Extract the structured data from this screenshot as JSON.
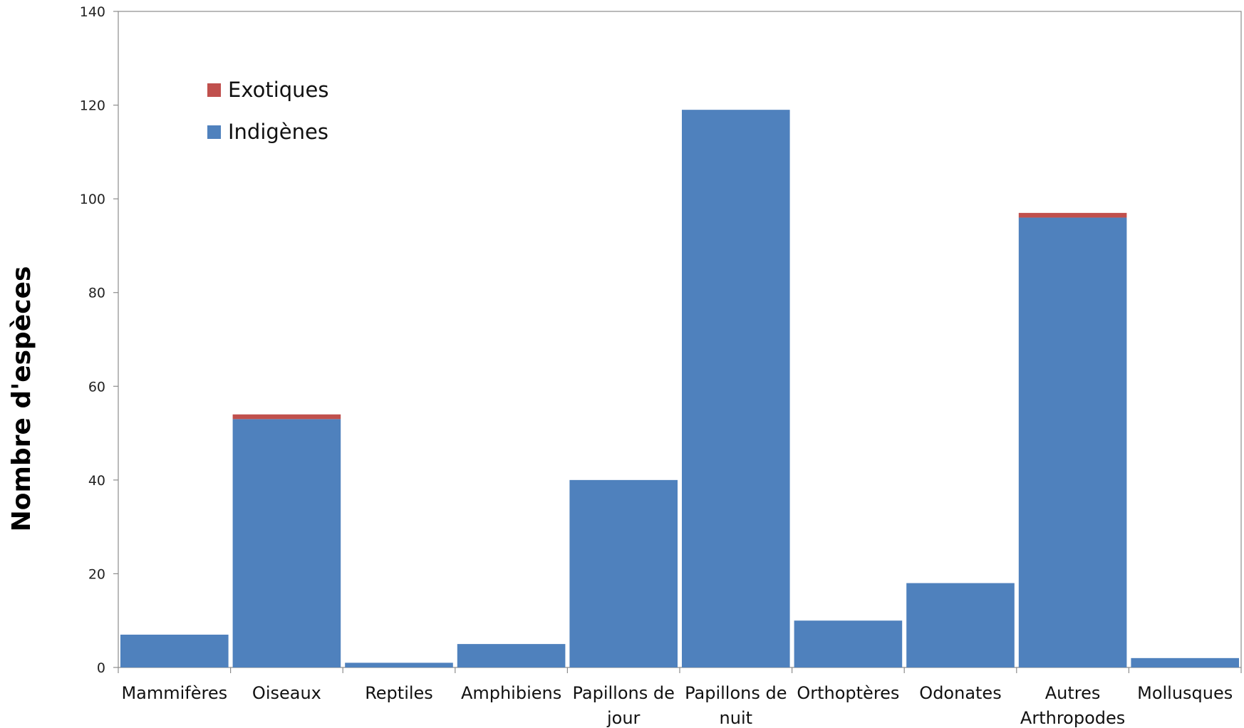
{
  "chart_data": {
    "type": "bar",
    "stacked": true,
    "title": "",
    "xlabel": "",
    "ylabel": "Nombre d'espèces",
    "ylim": [
      0,
      140
    ],
    "yticks": [
      0,
      20,
      40,
      60,
      80,
      100,
      120,
      140
    ],
    "grid": false,
    "legend_position": "top-left",
    "categories": [
      [
        "Mammifères"
      ],
      [
        "Oiseaux"
      ],
      [
        "Reptiles"
      ],
      [
        "Amphibiens"
      ],
      [
        "Papillons de",
        "jour"
      ],
      [
        "Papillons de",
        "nuit"
      ],
      [
        "Orthoptères"
      ],
      [
        "Odonates"
      ],
      [
        "Autres",
        "Arthropodes"
      ],
      [
        "Mollusques"
      ]
    ],
    "series": [
      {
        "name": "Indigènes",
        "color": "#4f81bd",
        "values": [
          7,
          53,
          1,
          5,
          40,
          119,
          10,
          18,
          96,
          2
        ]
      },
      {
        "name": "Exotiques",
        "color": "#c0504d",
        "values": [
          0,
          1,
          0,
          0,
          0,
          0,
          0,
          0,
          1,
          0
        ]
      }
    ],
    "legend_order": [
      "Exotiques",
      "Indigènes"
    ]
  }
}
